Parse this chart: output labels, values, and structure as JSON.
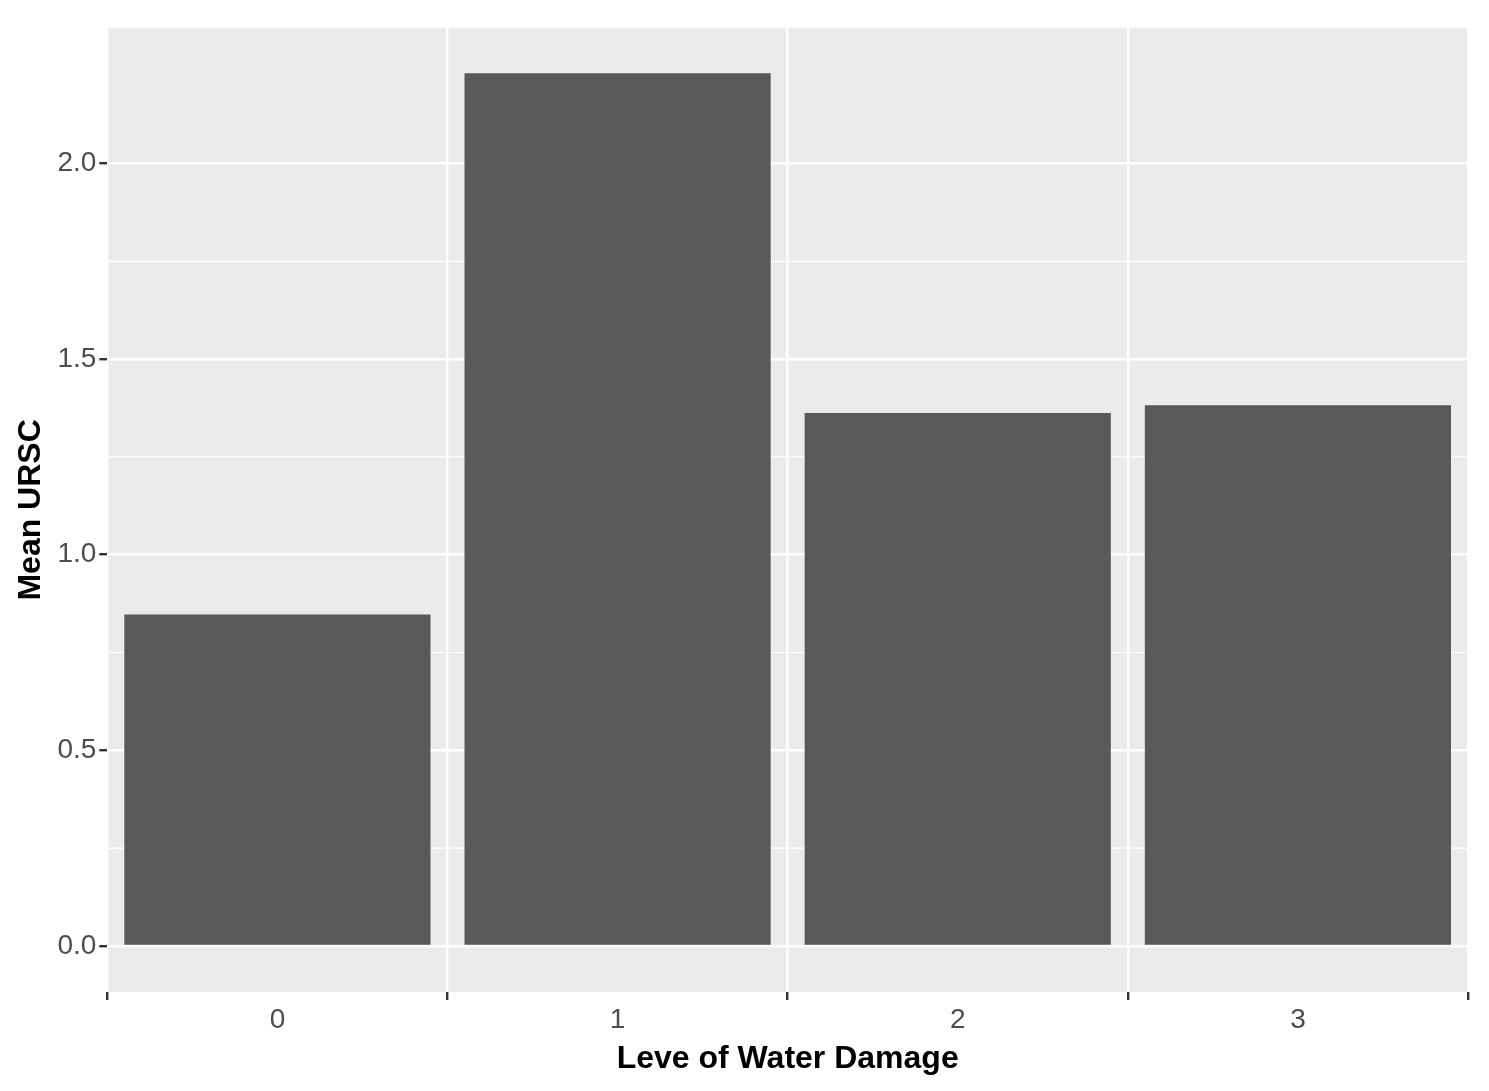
{
  "chart_data": {
    "type": "bar",
    "xlabel": "Leve of Water Damage",
    "ylabel": "Mean URSC",
    "categories": [
      "0",
      "1",
      "2",
      "3"
    ],
    "values": [
      0.847,
      2.231,
      1.362,
      1.382
    ],
    "color": "#595959",
    "ylim": [
      -0.118,
      2.347
    ],
    "yticks": [
      {
        "value": 0,
        "label": "0.0"
      },
      {
        "value": 0.5,
        "label": "0.5"
      },
      {
        "value": 1,
        "label": "1.0"
      },
      {
        "value": 1.5,
        "label": "1.5"
      },
      {
        "value": 2,
        "label": "2.0"
      }
    ],
    "grid": true
  }
}
